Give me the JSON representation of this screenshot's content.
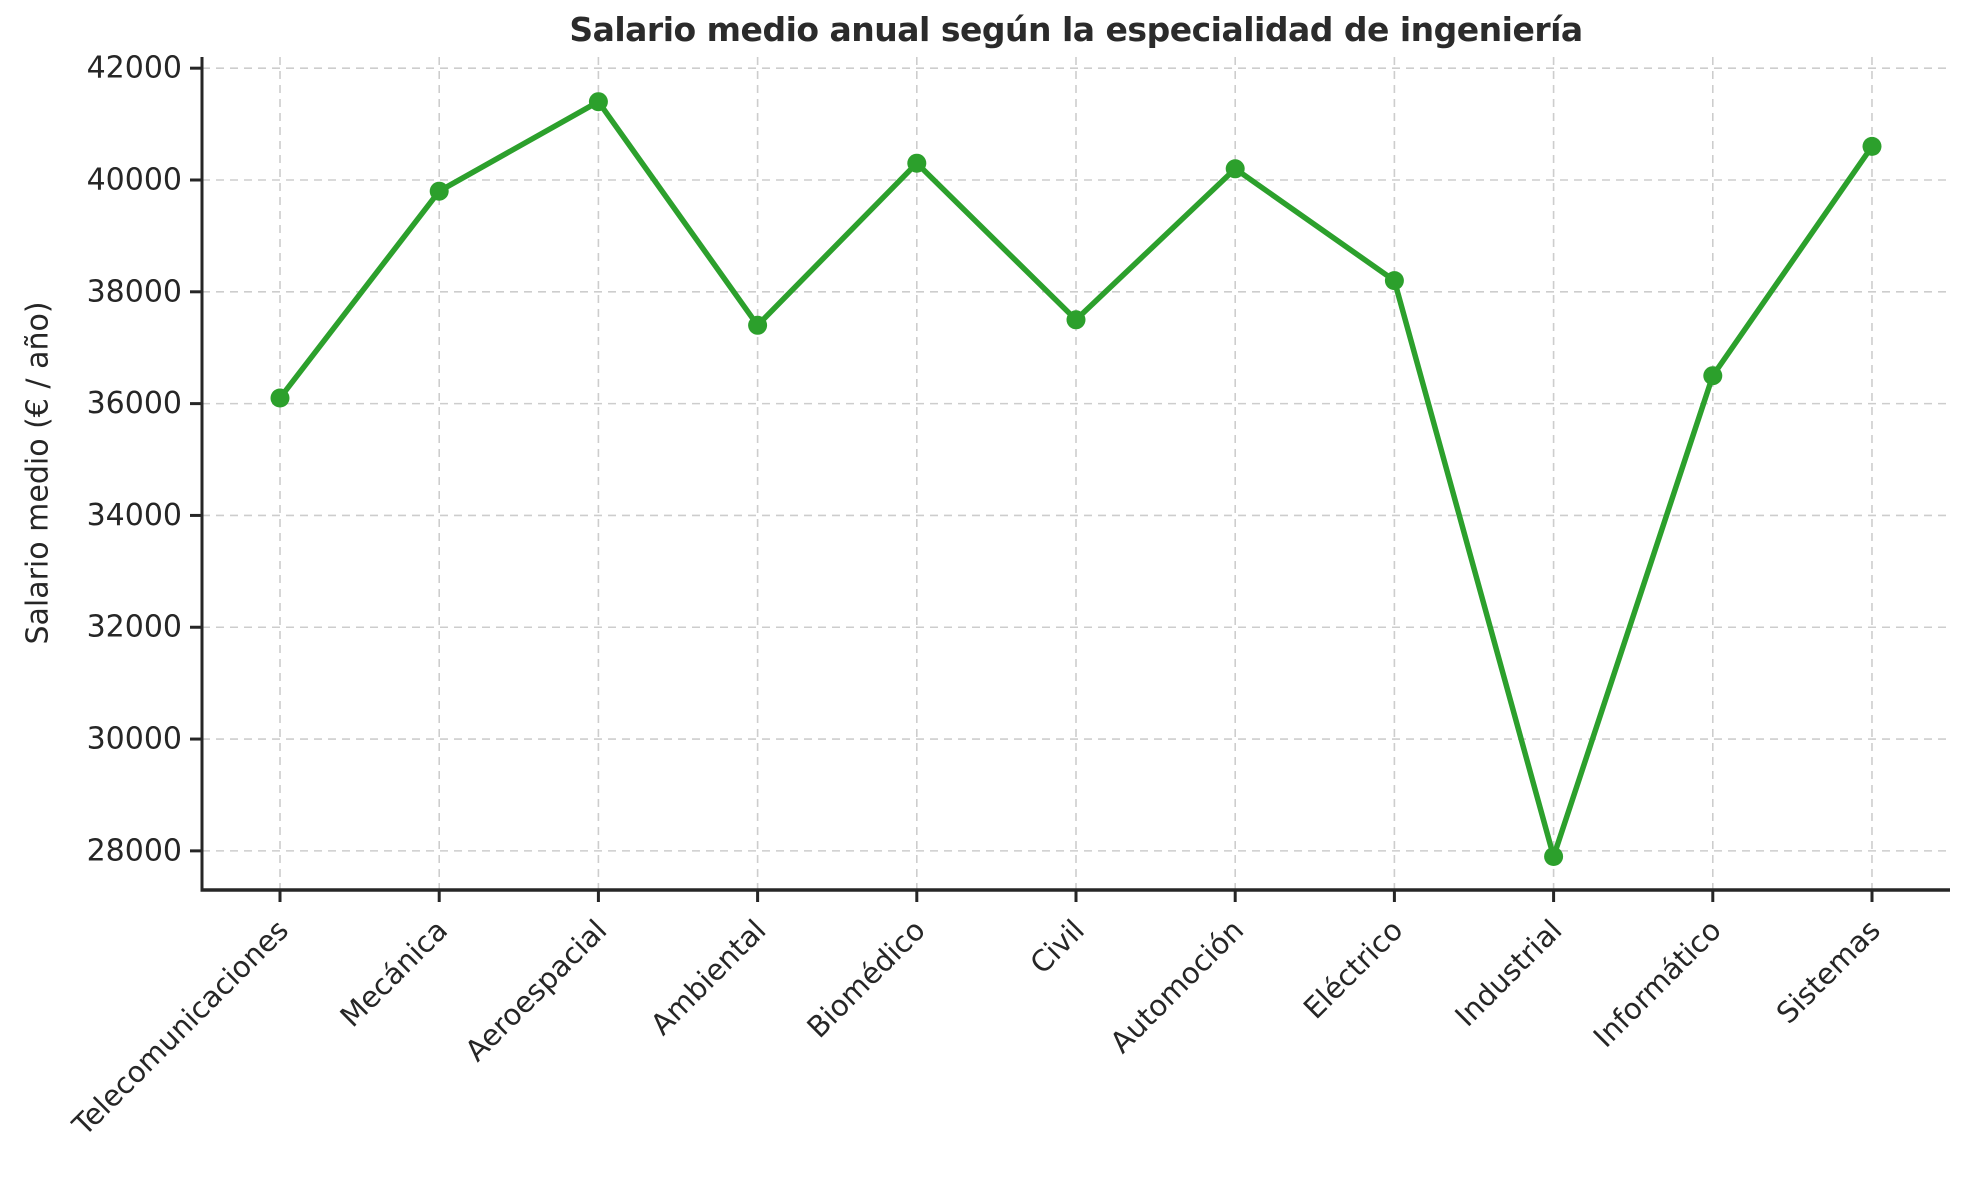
{
  "figure": {
    "background": "#ffffff"
  },
  "chart_data": {
    "type": "line",
    "title": "Salario medio anual según la especialidad de ingeniería",
    "xlabel": "",
    "ylabel": "Salario medio (€ / año)",
    "categories": [
      "Telecomunicaciones",
      "Mecánica",
      "Aeroespacial",
      "Ambiental",
      "Biomédico",
      "Civil",
      "Automoción",
      "Eléctrico",
      "Industrial",
      "Informático",
      "Sistemas"
    ],
    "series": [
      {
        "name": "Salario medio",
        "values": [
          36100,
          39800,
          41400,
          37400,
          40300,
          37500,
          40200,
          38200,
          27900,
          36500,
          40600
        ]
      }
    ],
    "yticks": [
      28000,
      30000,
      32000,
      34000,
      36000,
      38000,
      40000,
      42000
    ],
    "ylim": [
      27300,
      42200
    ],
    "grid": true,
    "grid_style": "dashed",
    "legend": "none",
    "x_tick_rotation_deg": 45,
    "colors": {
      "line": "#2ca02c",
      "marker": "#2ca02c",
      "grid": "#cdcdcd",
      "axis": "#262626",
      "tick_text": "#262626",
      "title_text": "#2b2b2b"
    }
  }
}
